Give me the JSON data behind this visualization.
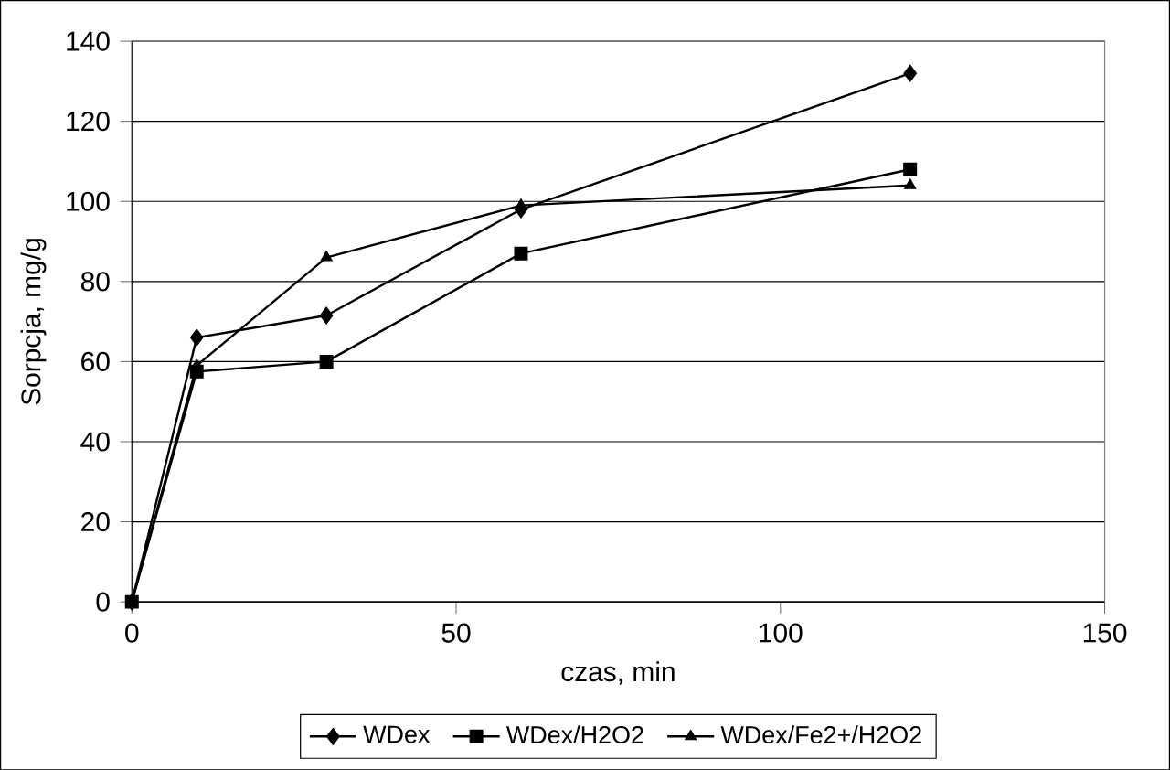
{
  "chart_data": {
    "type": "line",
    "xlabel": "czas, min",
    "ylabel": "Sorpcja, mg/g",
    "xlim": [
      0,
      150
    ],
    "xticks": [
      0,
      50,
      100,
      150
    ],
    "ylim": [
      0,
      140
    ],
    "yticks": [
      0,
      20,
      40,
      60,
      80,
      100,
      120,
      140
    ],
    "grid": "y",
    "legend": "bottom",
    "series": [
      {
        "name": "WDex",
        "color": "#000000",
        "marker": "diamond",
        "x": [
          0,
          10,
          30,
          60,
          120
        ],
        "values": [
          0,
          66,
          71.5,
          98,
          132
        ]
      },
      {
        "name": "WDex/H2O2",
        "color": "#000000",
        "marker": "square",
        "x": [
          0,
          10,
          30,
          60,
          120
        ],
        "values": [
          0,
          57.5,
          60,
          87,
          108
        ]
      },
      {
        "name": "WDex/Fe2+/H2O2",
        "color": "#000000",
        "marker": "triangle",
        "x": [
          0,
          10,
          30,
          60,
          120
        ],
        "values": [
          0,
          59,
          86,
          99,
          104
        ]
      }
    ]
  }
}
